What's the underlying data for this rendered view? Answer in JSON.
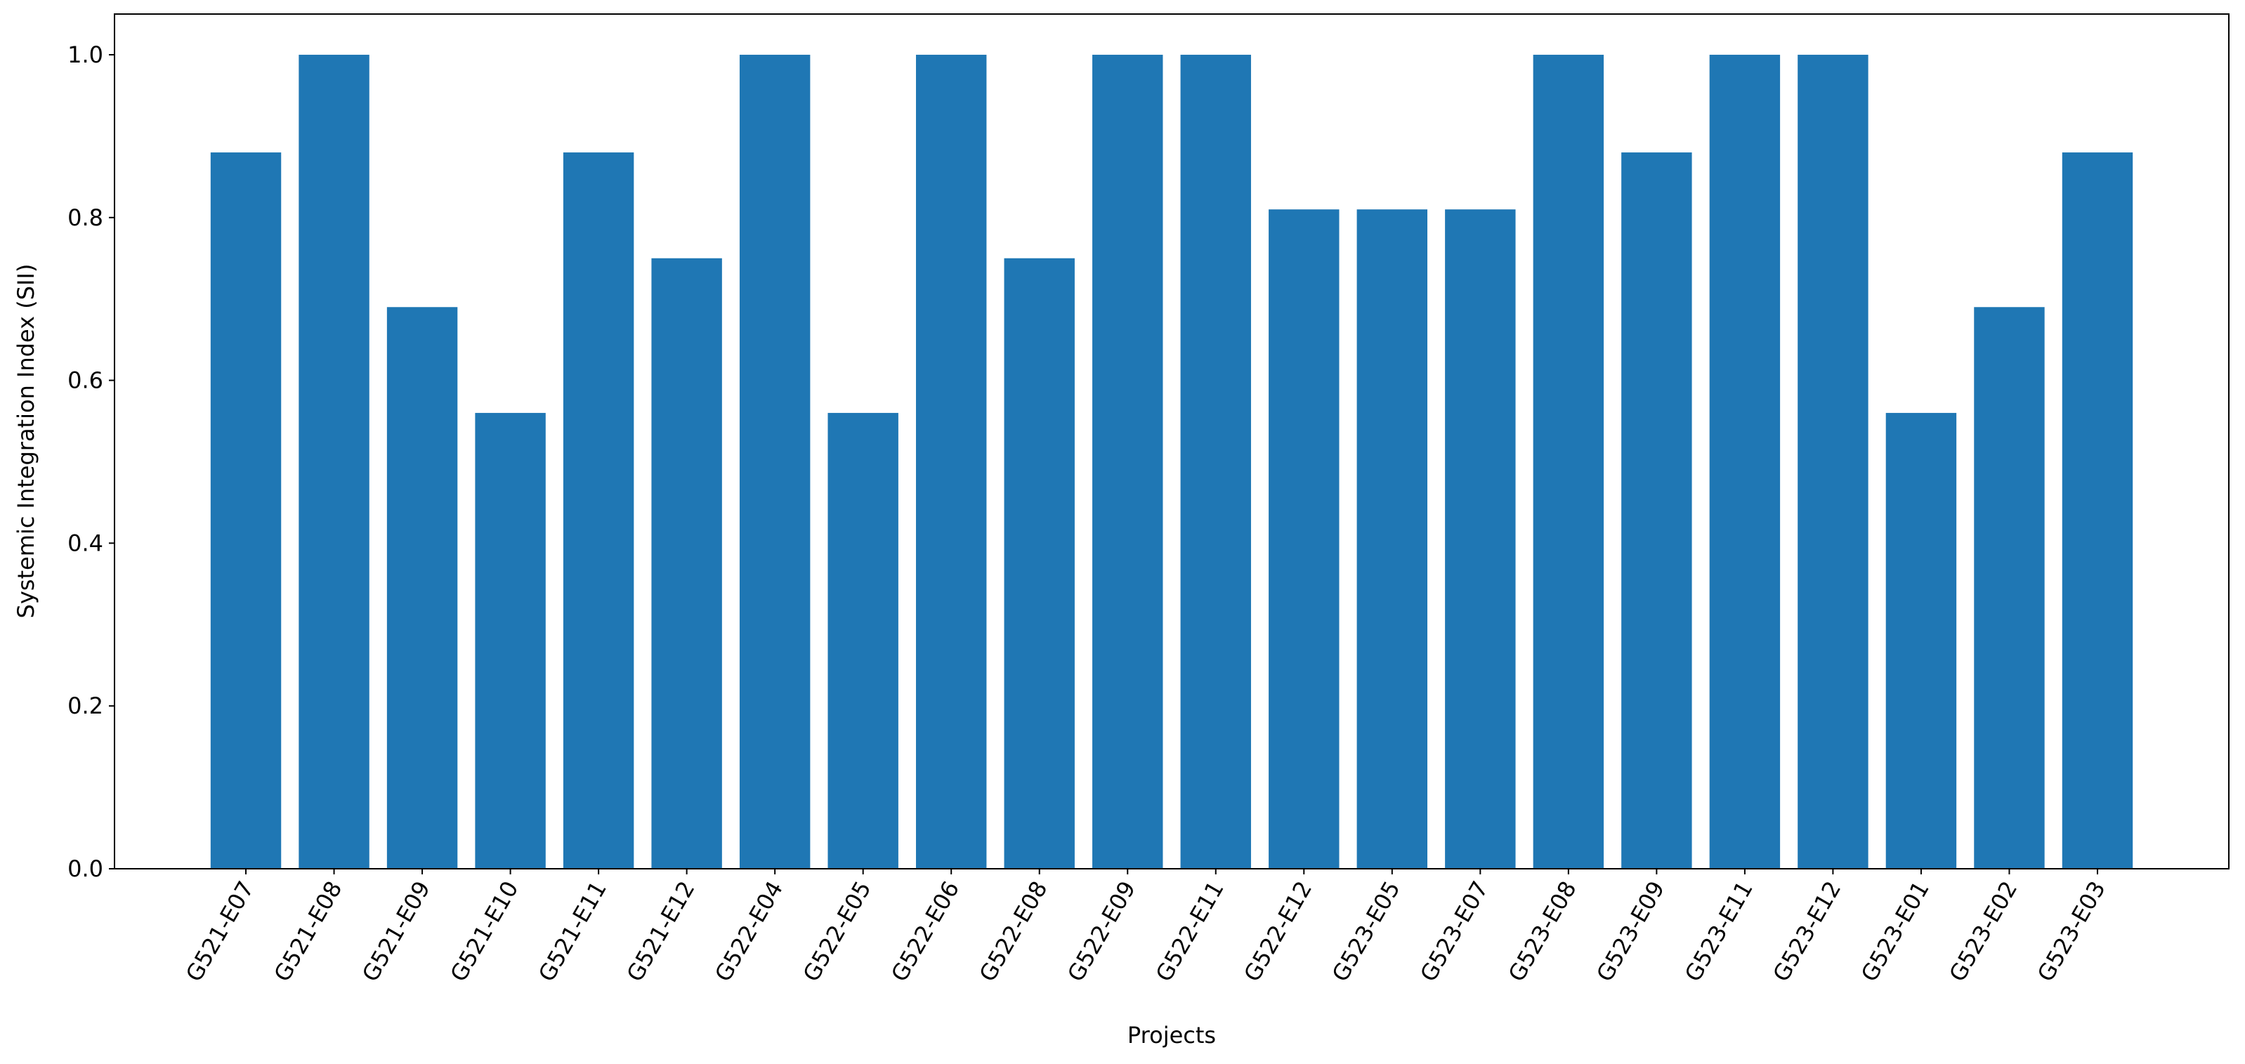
{
  "chart_data": {
    "type": "bar",
    "x_label": "Projects",
    "y_label": "Systemic Integration Index (SII)",
    "categories": [
      "G521-E07",
      "G521-E08",
      "G521-E09",
      "G521-E10",
      "G521-E11",
      "G521-E12",
      "G522-E04",
      "G522-E05",
      "G522-E06",
      "G522-E08",
      "G522-E09",
      "G522-E11",
      "G522-E12",
      "G523-E05",
      "G523-E07",
      "G523-E08",
      "G523-E09",
      "G523-E11",
      "G523-E12",
      "G523-E01",
      "G523-E02",
      "G523-E03"
    ],
    "values": [
      0.88,
      1.0,
      0.69,
      0.56,
      0.88,
      0.75,
      1.0,
      0.56,
      1.0,
      0.75,
      1.0,
      1.0,
      0.81,
      0.81,
      0.81,
      1.0,
      0.88,
      1.0,
      1.0,
      0.56,
      0.69,
      0.88
    ],
    "color": "#1f77b4",
    "ylim": [
      0,
      1.05
    ],
    "yticks": [
      {
        "value": 0,
        "label": "0.0"
      },
      0.2,
      0.4,
      0.6,
      0.8,
      {
        "value": 1,
        "label": "1.0"
      }
    ],
    "grid": false
  }
}
